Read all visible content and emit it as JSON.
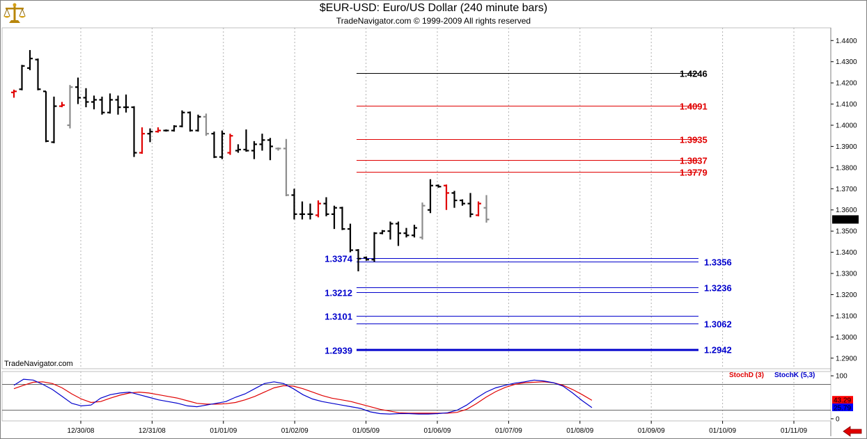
{
  "header": {
    "title": "$EUR-USD:  Euro/US Dollar  (240 minute bars)",
    "subtitle": "TradeNavigator.com © 1999-2009 All rights reserved",
    "watermark": "TradeNavigator.com"
  },
  "icons": {
    "logo": "brass-scales-logo-icon",
    "scroll": "red-left-arrow-icon"
  },
  "colors": {
    "black": "#000000",
    "red": "#e00000",
    "gray": "#8c8c8c",
    "blue": "#0000cc",
    "price_tag_bg": "#000000",
    "stochD_tag_bg": "#ff0000",
    "stochK_tag_bg": "#0000ff",
    "green_marker": "#00a000"
  },
  "chart_data": [
    {
      "type": "ohlc",
      "title": "$EUR-USD:  Euro/US Dollar  (240 minute bars)",
      "y_range": [
        1.285,
        1.446
      ],
      "y_ticks": [
        "1.4400",
        "1.4300",
        "1.4200",
        "1.4100",
        "1.4000",
        "1.3900",
        "1.3800",
        "1.3700",
        "1.3600",
        "1.3500",
        "1.3400",
        "1.3300",
        "1.3200",
        "1.3100",
        "1.3000",
        "1.2900"
      ],
      "x_labels": [
        "12/30/08",
        "12/31/08",
        "01/01/09",
        "01/02/09",
        "01/05/09",
        "01/06/09",
        "01/07/09",
        "01/08/09",
        "01/09/09",
        "01/10/09",
        "01/11/09"
      ],
      "last_price": "1.3555",
      "bars": [
        {
          "o": 1.4155,
          "h": 1.4168,
          "l": 1.413,
          "c": 1.416,
          "color": "red"
        },
        {
          "o": 1.417,
          "h": 1.4285,
          "l": 1.4165,
          "c": 1.428,
          "color": "black"
        },
        {
          "o": 1.427,
          "h": 1.4355,
          "l": 1.426,
          "c": 1.4315,
          "color": "black"
        },
        {
          "o": 1.431,
          "h": 1.4315,
          "l": 1.4165,
          "c": 1.417,
          "color": "black"
        },
        {
          "o": 1.416,
          "h": 1.416,
          "l": 1.392,
          "c": 1.3925,
          "color": "black"
        },
        {
          "o": 1.392,
          "h": 1.4135,
          "l": 1.3915,
          "c": 1.409,
          "color": "black"
        },
        {
          "o": 1.409,
          "h": 1.411,
          "l": 1.4085,
          "c": 1.4095,
          "color": "red"
        },
        {
          "o": 1.4,
          "h": 1.419,
          "l": 1.3985,
          "c": 1.418,
          "color": "gray"
        },
        {
          "o": 1.418,
          "h": 1.4225,
          "l": 1.41,
          "c": 1.413,
          "color": "black"
        },
        {
          "o": 1.413,
          "h": 1.4175,
          "l": 1.4085,
          "c": 1.411,
          "color": "black"
        },
        {
          "o": 1.411,
          "h": 1.414,
          "l": 1.4075,
          "c": 1.412,
          "color": "black"
        },
        {
          "o": 1.412,
          "h": 1.4135,
          "l": 1.405,
          "c": 1.406,
          "color": "black"
        },
        {
          "o": 1.406,
          "h": 1.415,
          "l": 1.4055,
          "c": 1.412,
          "color": "black"
        },
        {
          "o": 1.412,
          "h": 1.414,
          "l": 1.405,
          "c": 1.4085,
          "color": "black"
        },
        {
          "o": 1.4085,
          "h": 1.4145,
          "l": 1.406,
          "c": 1.4085,
          "color": "black"
        },
        {
          "o": 1.4085,
          "h": 1.409,
          "l": 1.385,
          "c": 1.387,
          "color": "black"
        },
        {
          "o": 1.387,
          "h": 1.399,
          "l": 1.3865,
          "c": 1.396,
          "color": "red"
        },
        {
          "o": 1.396,
          "h": 1.3985,
          "l": 1.392,
          "c": 1.397,
          "color": "black"
        },
        {
          "o": 1.397,
          "h": 1.399,
          "l": 1.3965,
          "c": 1.3975,
          "color": "red"
        },
        {
          "o": 1.3975,
          "h": 1.398,
          "l": 1.397,
          "c": 1.3975,
          "color": "black"
        },
        {
          "o": 1.3975,
          "h": 1.4,
          "l": 1.397,
          "c": 1.3995,
          "color": "black"
        },
        {
          "o": 1.3995,
          "h": 1.407,
          "l": 1.399,
          "c": 1.406,
          "color": "black"
        },
        {
          "o": 1.406,
          "h": 1.4065,
          "l": 1.397,
          "c": 1.3975,
          "color": "black"
        },
        {
          "o": 1.3975,
          "h": 1.405,
          "l": 1.397,
          "c": 1.404,
          "color": "black"
        },
        {
          "o": 1.404,
          "h": 1.4055,
          "l": 1.395,
          "c": 1.396,
          "color": "gray"
        },
        {
          "o": 1.396,
          "h": 1.397,
          "l": 1.3845,
          "c": 1.385,
          "color": "black"
        },
        {
          "o": 1.385,
          "h": 1.3975,
          "l": 1.384,
          "c": 1.396,
          "color": "black"
        },
        {
          "o": 1.387,
          "h": 1.396,
          "l": 1.386,
          "c": 1.395,
          "color": "red"
        },
        {
          "o": 1.388,
          "h": 1.391,
          "l": 1.387,
          "c": 1.3885,
          "color": "black"
        },
        {
          "o": 1.3885,
          "h": 1.398,
          "l": 1.3875,
          "c": 1.388,
          "color": "black"
        },
        {
          "o": 1.388,
          "h": 1.3925,
          "l": 1.384,
          "c": 1.391,
          "color": "black"
        },
        {
          "o": 1.391,
          "h": 1.396,
          "l": 1.388,
          "c": 1.393,
          "color": "black"
        },
        {
          "o": 1.393,
          "h": 1.394,
          "l": 1.3835,
          "c": 1.39,
          "color": "black"
        },
        {
          "o": 1.389,
          "h": 1.3895,
          "l": 1.388,
          "c": 1.389,
          "color": "gray"
        },
        {
          "o": 1.389,
          "h": 1.3935,
          "l": 1.3665,
          "c": 1.367,
          "color": "gray"
        },
        {
          "o": 1.367,
          "h": 1.37,
          "l": 1.3555,
          "c": 1.358,
          "color": "black"
        },
        {
          "o": 1.358,
          "h": 1.364,
          "l": 1.3555,
          "c": 1.358,
          "color": "black"
        },
        {
          "o": 1.358,
          "h": 1.363,
          "l": 1.3555,
          "c": 1.358,
          "color": "black"
        },
        {
          "o": 1.3575,
          "h": 1.3645,
          "l": 1.3565,
          "c": 1.363,
          "color": "red"
        },
        {
          "o": 1.363,
          "h": 1.366,
          "l": 1.357,
          "c": 1.358,
          "color": "black"
        },
        {
          "o": 1.358,
          "h": 1.362,
          "l": 1.351,
          "c": 1.361,
          "color": "black"
        },
        {
          "o": 1.361,
          "h": 1.3615,
          "l": 1.3505,
          "c": 1.351,
          "color": "black"
        },
        {
          "o": 1.351,
          "h": 1.3535,
          "l": 1.34,
          "c": 1.341,
          "color": "black"
        },
        {
          "o": 1.341,
          "h": 1.3415,
          "l": 1.331,
          "c": 1.337,
          "color": "black"
        },
        {
          "o": 1.3375,
          "h": 1.338,
          "l": 1.336,
          "c": 1.3365,
          "color": "black"
        },
        {
          "o": 1.3365,
          "h": 1.3495,
          "l": 1.3355,
          "c": 1.349,
          "color": "black"
        },
        {
          "o": 1.349,
          "h": 1.3505,
          "l": 1.3485,
          "c": 1.35,
          "color": "black"
        },
        {
          "o": 1.35,
          "h": 1.3545,
          "l": 1.346,
          "c": 1.3535,
          "color": "black"
        },
        {
          "o": 1.3535,
          "h": 1.3545,
          "l": 1.343,
          "c": 1.349,
          "color": "black"
        },
        {
          "o": 1.349,
          "h": 1.3515,
          "l": 1.347,
          "c": 1.348,
          "color": "black"
        },
        {
          "o": 1.348,
          "h": 1.353,
          "l": 1.347,
          "c": 1.3515,
          "color": "black"
        },
        {
          "o": 1.347,
          "h": 1.3635,
          "l": 1.346,
          "c": 1.362,
          "color": "gray"
        },
        {
          "o": 1.36,
          "h": 1.3745,
          "l": 1.3585,
          "c": 1.3715,
          "color": "black"
        },
        {
          "o": 1.3715,
          "h": 1.372,
          "l": 1.3705,
          "c": 1.371,
          "color": "black"
        },
        {
          "o": 1.3715,
          "h": 1.372,
          "l": 1.36,
          "c": 1.368,
          "color": "red"
        },
        {
          "o": 1.368,
          "h": 1.369,
          "l": 1.361,
          "c": 1.3645,
          "color": "black"
        },
        {
          "o": 1.3645,
          "h": 1.365,
          "l": 1.362,
          "c": 1.363,
          "color": "black"
        },
        {
          "o": 1.363,
          "h": 1.368,
          "l": 1.3565,
          "c": 1.358,
          "color": "black"
        },
        {
          "o": 1.3575,
          "h": 1.364,
          "l": 1.357,
          "c": 1.363,
          "color": "red"
        },
        {
          "o": 1.361,
          "h": 1.367,
          "l": 1.354,
          "c": 1.3555,
          "color": "gray"
        }
      ],
      "levels": [
        {
          "value": 1.4246,
          "label": "1.4246",
          "color": "black",
          "side": "right"
        },
        {
          "value": 1.4091,
          "label": "1.4091",
          "color": "red",
          "side": "right"
        },
        {
          "value": 1.3935,
          "label": "1.3935",
          "color": "red",
          "side": "right"
        },
        {
          "value": 1.3837,
          "label": "1.3837",
          "color": "red",
          "side": "right"
        },
        {
          "value": 1.3779,
          "label": "1.3779",
          "color": "red",
          "side": "right"
        },
        {
          "value": 1.3374,
          "label": "1.3374",
          "color": "blue",
          "side": "left"
        },
        {
          "value": 1.3356,
          "label": "1.3356",
          "color": "blue",
          "side": "right"
        },
        {
          "value": 1.3236,
          "label": "1.3236",
          "color": "blue",
          "side": "right"
        },
        {
          "value": 1.3212,
          "label": "1.3212",
          "color": "blue",
          "side": "left"
        },
        {
          "value": 1.3101,
          "label": "1.3101",
          "color": "blue",
          "side": "left"
        },
        {
          "value": 1.3062,
          "label": "1.3062",
          "color": "blue",
          "side": "right"
        },
        {
          "value": 1.2942,
          "label": "1.2942",
          "color": "blue",
          "side": "right"
        },
        {
          "value": 1.2939,
          "label": "1.2939",
          "color": "blue",
          "side": "left"
        }
      ]
    },
    {
      "type": "line",
      "y_range": [
        -5,
        110
      ],
      "y_ticks": [
        "100",
        "0"
      ],
      "reference_lines": [
        80,
        20
      ],
      "legend": [
        "StochD (3)",
        "StochK (5,3)"
      ],
      "last_values": {
        "stochD": "43.29",
        "stochK": "25.79"
      },
      "series": [
        {
          "name": "StochD (3)",
          "color": "red",
          "values": [
            70,
            78,
            85,
            86,
            82,
            72,
            58,
            46,
            38,
            40,
            48,
            55,
            60,
            62,
            60,
            56,
            52,
            48,
            42,
            36,
            34,
            34,
            35,
            38,
            44,
            52,
            62,
            72,
            77,
            76,
            70,
            62,
            54,
            48,
            44,
            40,
            34,
            28,
            22,
            18,
            14,
            13,
            13,
            13,
            13,
            13,
            15,
            22,
            35,
            50,
            63,
            73,
            80,
            84,
            85,
            86,
            84,
            78,
            68,
            56,
            43
          ]
        },
        {
          "name": "StochK (5,3)",
          "color": "blue",
          "values": [
            78,
            92,
            90,
            80,
            68,
            52,
            36,
            30,
            32,
            48,
            56,
            60,
            62,
            56,
            50,
            44,
            40,
            36,
            30,
            28,
            32,
            36,
            40,
            50,
            58,
            70,
            82,
            86,
            82,
            70,
            56,
            46,
            40,
            36,
            32,
            28,
            24,
            16,
            12,
            11,
            12,
            12,
            11,
            11,
            12,
            14,
            20,
            32,
            48,
            62,
            72,
            78,
            83,
            86,
            90,
            88,
            84,
            76,
            60,
            42,
            26
          ]
        }
      ]
    }
  ]
}
